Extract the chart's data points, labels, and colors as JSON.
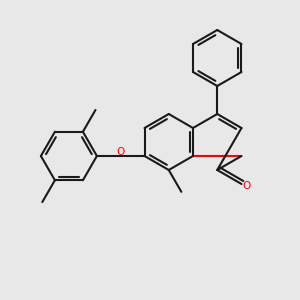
{
  "background_color": "#e8e8e8",
  "bond_color": "#1a1a1a",
  "oxygen_color": "#ff0000",
  "carbon_color": "#1a1a1a",
  "lw": 1.5,
  "lw2": 1.5,
  "font_size": 7.5,
  "methyl_font_size": 7.0
}
